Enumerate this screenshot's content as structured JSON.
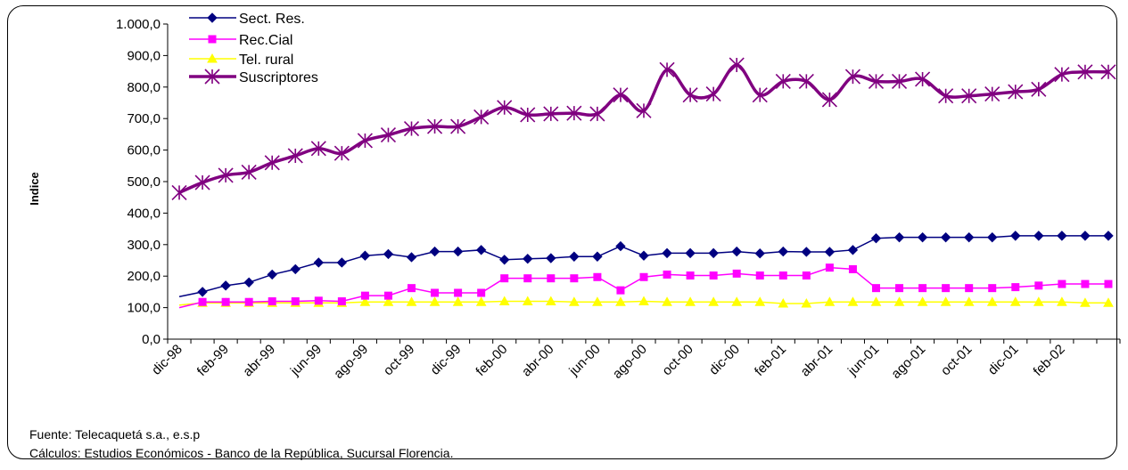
{
  "chart_data": {
    "type": "line",
    "xlabel": "",
    "ylabel": "Indice",
    "ylim": [
      0,
      1000
    ],
    "y_ticks": [
      "0,0",
      "100,0",
      "200,0",
      "300,0",
      "400,0",
      "500,0",
      "600,0",
      "700,0",
      "800,0",
      "900,0",
      "1.000,0"
    ],
    "x_tick_labels": [
      "dic-98",
      "feb-99",
      "abr-99",
      "jun-99",
      "ago-99",
      "oct-99",
      "dic-99",
      "feb-00",
      "abr-00",
      "jun-00",
      "ago-00",
      "oct-00",
      "dic-00",
      "feb-01",
      "abr-01",
      "jun-01",
      "ago-01",
      "oct-01",
      "dic-01",
      "feb-02"
    ],
    "legend_position": "top-left",
    "series": [
      {
        "name": "Sect. Res.",
        "color": "#000080",
        "marker": "diamond",
        "values": [
          135,
          150,
          170,
          180,
          205,
          222,
          243,
          243,
          265,
          270,
          260,
          278,
          278,
          283,
          252,
          255,
          257,
          262,
          262,
          295,
          265,
          273,
          273,
          273,
          278,
          272,
          278,
          277,
          277,
          283,
          320,
          323,
          323,
          323,
          323,
          323,
          328,
          328,
          328,
          328,
          328
        ]
      },
      {
        "name": "Rec.Cial",
        "color": "#ff00ff",
        "marker": "square",
        "values": [
          100,
          118,
          118,
          118,
          120,
          120,
          122,
          120,
          138,
          138,
          162,
          147,
          147,
          147,
          193,
          193,
          193,
          193,
          197,
          155,
          197,
          205,
          202,
          202,
          208,
          202,
          202,
          202,
          227,
          222,
          162,
          162,
          162,
          162,
          162,
          162,
          165,
          170,
          175,
          175,
          175
        ]
      },
      {
        "name": "Tel. rural",
        "color": "#ffff00",
        "marker": "triangle",
        "values": [
          108,
          115,
          115,
          115,
          115,
          115,
          115,
          115,
          118,
          118,
          118,
          118,
          118,
          118,
          120,
          120,
          120,
          118,
          118,
          118,
          120,
          118,
          118,
          118,
          118,
          118,
          113,
          113,
          118,
          118,
          118,
          118,
          118,
          118,
          118,
          118,
          118,
          118,
          118,
          115,
          115
        ]
      },
      {
        "name": "Suscriptores",
        "color": "#800080",
        "marker": "asterisk",
        "values": [
          465,
          497,
          520,
          530,
          560,
          582,
          605,
          590,
          630,
          648,
          668,
          675,
          675,
          705,
          735,
          712,
          715,
          717,
          715,
          775,
          725,
          855,
          775,
          778,
          870,
          775,
          818,
          818,
          760,
          833,
          818,
          818,
          825,
          772,
          772,
          778,
          785,
          793,
          840,
          848,
          848
        ]
      }
    ]
  },
  "footer": {
    "source": "Fuente: Telecaquetá s.a., e.s.p",
    "calc": "Cálculos:  Estudios Económicos - Banco de la República, Sucursal Florencia."
  }
}
